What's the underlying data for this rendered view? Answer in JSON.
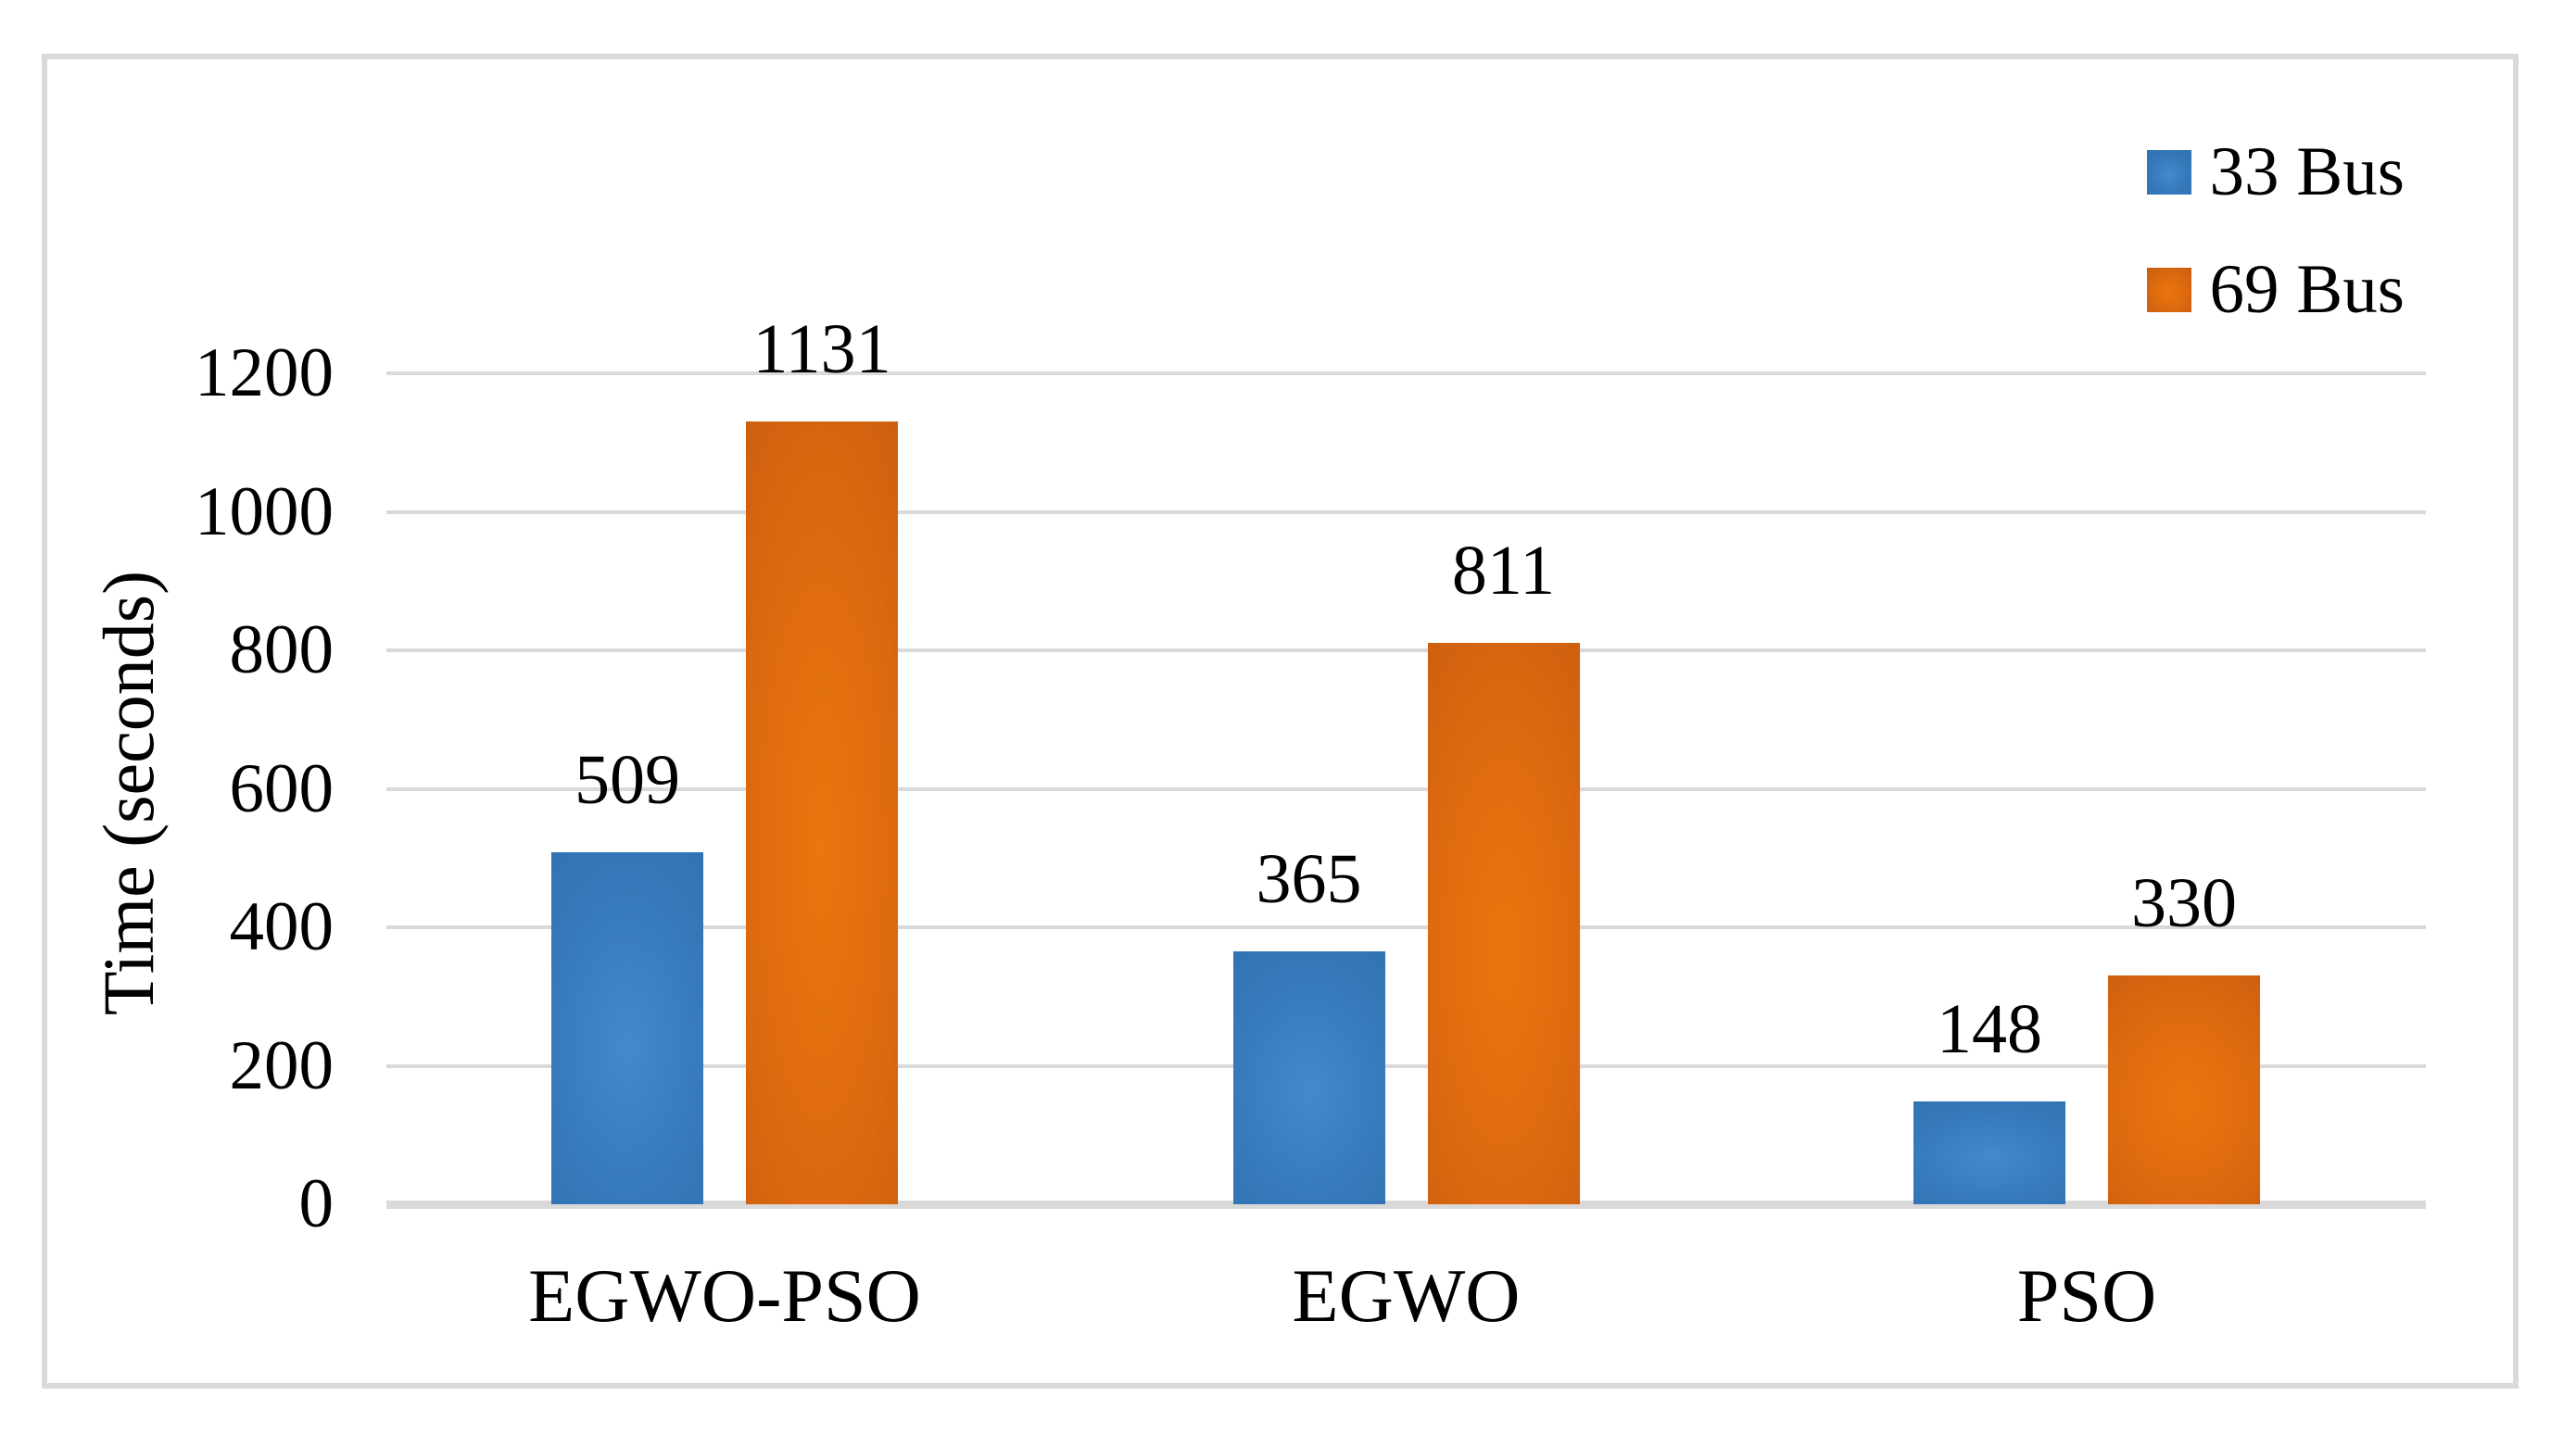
{
  "chart_data": {
    "type": "bar",
    "title": "",
    "xlabel": "",
    "ylabel": "Time (seconds)",
    "categories": [
      "EGWO-PSO",
      "EGWO",
      "PSO"
    ],
    "series": [
      {
        "name": "33 Bus",
        "color": "#2E72B1",
        "color_center": "#4489CE",
        "values": [
          509,
          365,
          148
        ]
      },
      {
        "name": "69 Bus",
        "color": "#C75C10",
        "color_center": "#E9760E",
        "values": [
          1131,
          811,
          330
        ]
      }
    ],
    "ylim": [
      0,
      1200
    ],
    "yticks": [
      0,
      200,
      400,
      600,
      800,
      1000,
      1200
    ],
    "grid": true,
    "value_labels": true,
    "legend_position": "top-right"
  },
  "colors": {
    "background": "#FFFFFF",
    "frame_border": "#D9D9D9",
    "gridline": "#D9D9D9",
    "text": "#000000"
  }
}
